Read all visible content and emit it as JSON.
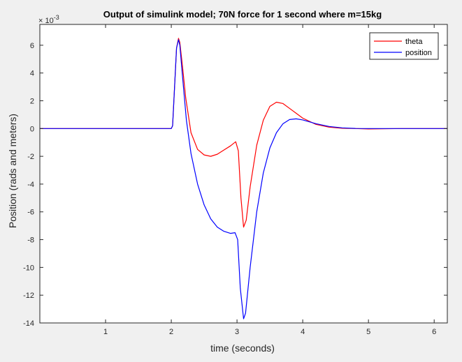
{
  "chart_data": {
    "type": "line",
    "title": "Output of simulink model; 70N force for 1 second where m=15kg",
    "xlabel": "time (seconds)",
    "ylabel": "Position (rads and meters)",
    "exponent_base": "× 10",
    "exponent_power": "-3",
    "xlim": [
      0,
      6.2
    ],
    "ylim": [
      -14,
      7.5
    ],
    "xticks": [
      1,
      2,
      3,
      4,
      5,
      6
    ],
    "xtick_labels": [
      "1",
      "2",
      "3",
      "4",
      "5",
      "6"
    ],
    "yticks": [
      -14,
      -12,
      -10,
      -8,
      -6,
      -4,
      -2,
      0,
      2,
      4,
      6
    ],
    "ytick_labels": [
      "-14",
      "-12",
      "-10",
      "-8",
      "-6",
      "-4",
      "-2",
      "0",
      "2",
      "4",
      "6"
    ],
    "grid": false,
    "legend_position": "top-right",
    "series": [
      {
        "name": "theta",
        "color": "#ff0000",
        "points": [
          [
            0,
            0
          ],
          [
            1.0,
            0
          ],
          [
            2.0,
            0
          ],
          [
            2.02,
            0.2
          ],
          [
            2.05,
            3.0
          ],
          [
            2.08,
            5.8
          ],
          [
            2.11,
            6.5
          ],
          [
            2.13,
            6.2
          ],
          [
            2.17,
            4.5
          ],
          [
            2.22,
            2.2
          ],
          [
            2.3,
            -0.3
          ],
          [
            2.4,
            -1.5
          ],
          [
            2.5,
            -1.9
          ],
          [
            2.6,
            -2.0
          ],
          [
            2.7,
            -1.85
          ],
          [
            2.8,
            -1.55
          ],
          [
            2.9,
            -1.25
          ],
          [
            2.98,
            -0.95
          ],
          [
            3.02,
            -1.6
          ],
          [
            3.06,
            -5.0
          ],
          [
            3.1,
            -7.1
          ],
          [
            3.14,
            -6.6
          ],
          [
            3.2,
            -4.2
          ],
          [
            3.3,
            -1.2
          ],
          [
            3.4,
            0.6
          ],
          [
            3.5,
            1.6
          ],
          [
            3.6,
            1.9
          ],
          [
            3.7,
            1.8
          ],
          [
            3.8,
            1.45
          ],
          [
            3.9,
            1.1
          ],
          [
            4.0,
            0.75
          ],
          [
            4.2,
            0.3
          ],
          [
            4.4,
            0.1
          ],
          [
            4.6,
            0.02
          ],
          [
            4.8,
            0.0
          ],
          [
            5.0,
            -0.03
          ],
          [
            5.5,
            0
          ],
          [
            6.2,
            0
          ]
        ]
      },
      {
        "name": "position",
        "color": "#0000ff",
        "points": [
          [
            0,
            0
          ],
          [
            1.0,
            0
          ],
          [
            2.0,
            0
          ],
          [
            2.02,
            0.2
          ],
          [
            2.05,
            3.0
          ],
          [
            2.08,
            5.8
          ],
          [
            2.11,
            6.4
          ],
          [
            2.13,
            6.0
          ],
          [
            2.17,
            3.8
          ],
          [
            2.23,
            0.6
          ],
          [
            2.3,
            -1.8
          ],
          [
            2.4,
            -4.0
          ],
          [
            2.5,
            -5.5
          ],
          [
            2.6,
            -6.5
          ],
          [
            2.7,
            -7.1
          ],
          [
            2.8,
            -7.4
          ],
          [
            2.9,
            -7.55
          ],
          [
            2.97,
            -7.5
          ],
          [
            3.01,
            -8.0
          ],
          [
            3.05,
            -11.5
          ],
          [
            3.1,
            -13.7
          ],
          [
            3.13,
            -13.3
          ],
          [
            3.2,
            -10.0
          ],
          [
            3.3,
            -6.0
          ],
          [
            3.4,
            -3.2
          ],
          [
            3.5,
            -1.4
          ],
          [
            3.6,
            -0.3
          ],
          [
            3.7,
            0.35
          ],
          [
            3.8,
            0.65
          ],
          [
            3.9,
            0.7
          ],
          [
            4.0,
            0.62
          ],
          [
            4.2,
            0.35
          ],
          [
            4.4,
            0.15
          ],
          [
            4.6,
            0.05
          ],
          [
            4.8,
            0.01
          ],
          [
            5.0,
            0
          ],
          [
            5.5,
            0
          ],
          [
            6.2,
            0
          ]
        ]
      }
    ]
  }
}
